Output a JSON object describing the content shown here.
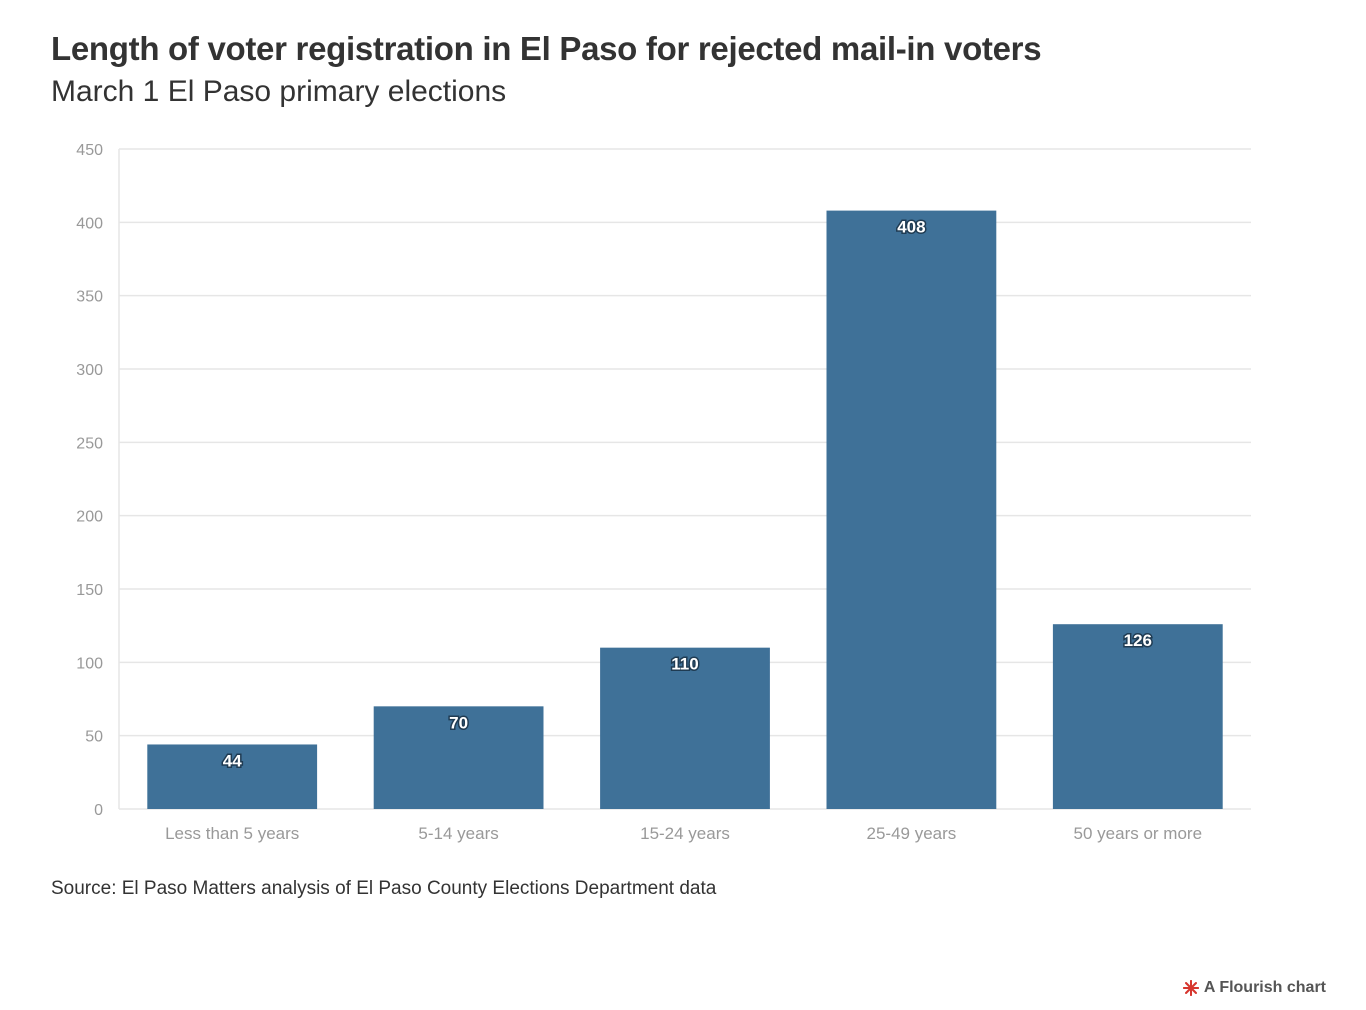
{
  "title": "Length of voter registration in El Paso for rejected mail-in voters",
  "subtitle": "March 1 El Paso primary elections",
  "source": "Source: El Paso Matters analysis of El Paso County Elections Department data",
  "credit": "A Flourish chart",
  "colors": {
    "bar": "#3f7198",
    "grid": "#e6e6e6",
    "axis_text": "#999999",
    "credit_icon": "#d6362e"
  },
  "chart_data": {
    "type": "bar",
    "title": "Length of voter registration in El Paso for rejected mail-in voters",
    "subtitle": "March 1 El Paso primary elections",
    "categories": [
      "Less than 5 years",
      "5-14 years",
      "15-24 years",
      "25-49 years",
      "50 years or more"
    ],
    "values": [
      44,
      70,
      110,
      408,
      126
    ],
    "value_labels": [
      "44",
      "70",
      "110",
      "408",
      "126"
    ],
    "xlabel": "",
    "ylabel": "",
    "ylim": [
      0,
      450
    ],
    "yticks": [
      0,
      50,
      100,
      150,
      200,
      250,
      300,
      350,
      400,
      450
    ],
    "grid": true,
    "legend": "none"
  }
}
